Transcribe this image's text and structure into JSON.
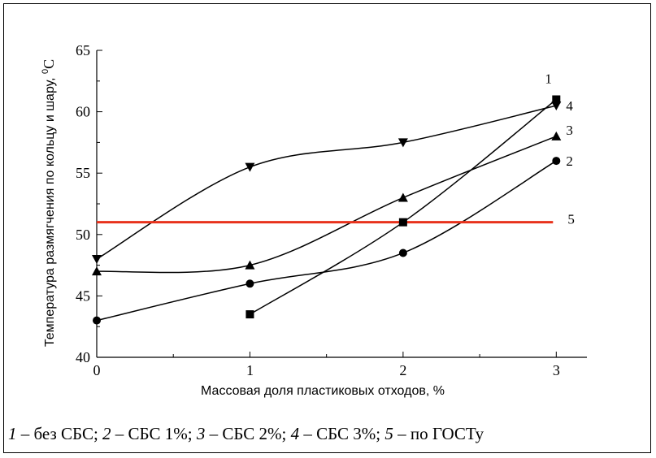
{
  "chart_data": {
    "type": "line",
    "xlabel": "Массовая доля пластиковых отходов, %",
    "ylabel": "Температура размягчения по кольцу и шару, ",
    "ylabel_unit_sup": "0",
    "ylabel_unit": "С",
    "xlim": [
      0,
      3.2
    ],
    "ylim": [
      40,
      65
    ],
    "x_ticks": [
      "0",
      "1",
      "2",
      "3"
    ],
    "y_ticks": [
      "40",
      "45",
      "50",
      "55",
      "60",
      "65"
    ],
    "series": [
      {
        "name": "1",
        "marker": "square",
        "color": "#000000",
        "x": [
          1,
          2,
          3
        ],
        "y": [
          43.5,
          51,
          61
        ]
      },
      {
        "name": "2",
        "marker": "circle",
        "color": "#000000",
        "x": [
          0,
          1,
          2,
          3
        ],
        "y": [
          43,
          46,
          48.5,
          56
        ]
      },
      {
        "name": "3",
        "marker": "triangle-up",
        "color": "#000000",
        "x": [
          0,
          1,
          2,
          3
        ],
        "y": [
          47,
          47.5,
          53,
          58
        ]
      },
      {
        "name": "4",
        "marker": "triangle-down",
        "color": "#000000",
        "x": [
          0,
          1,
          2,
          3
        ],
        "y": [
          48,
          55.5,
          57.5,
          60.5
        ]
      },
      {
        "name": "5",
        "marker": "none",
        "color": "#e8321c",
        "x": [
          0,
          3
        ],
        "y": [
          51,
          51
        ]
      }
    ],
    "caption": [
      {
        "num": "1",
        "text": " – без СБС; "
      },
      {
        "num": "2",
        "text": " – СБС 1%; "
      },
      {
        "num": "3",
        "text": " – СБС 2%; "
      },
      {
        "num": "4",
        "text": " – СБС 3%; "
      },
      {
        "num": "5",
        "text": " – по ГОСТу"
      }
    ]
  }
}
